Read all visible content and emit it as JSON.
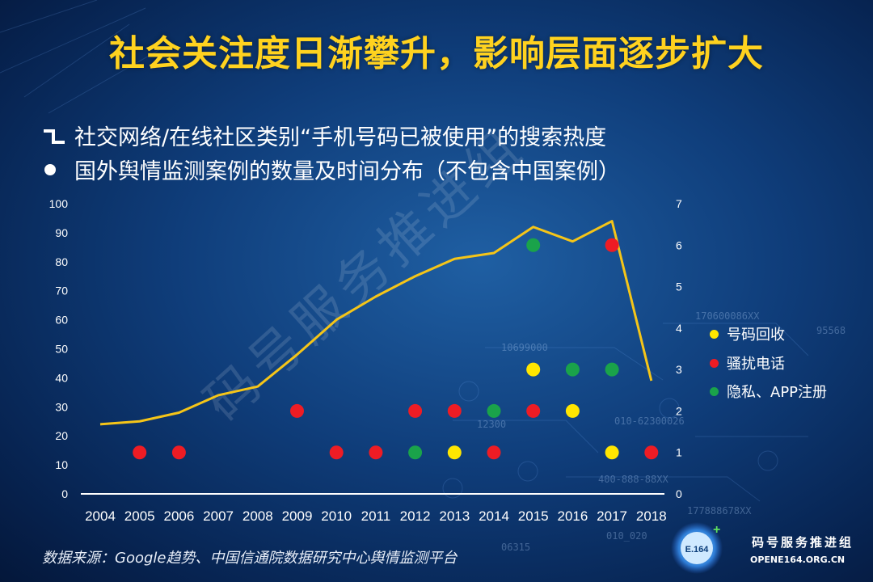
{
  "title": "社会关注度日渐攀升，影响层面逐步扩大",
  "series_line_label": "社交网络/在线社区类别“手机号码已被使用”的搜索热度",
  "series_dot_label": "国外舆情监测案例的数量及时间分布（不包含中国案例）",
  "source": "数据来源：Google趋势、中国信通院数据研究中心舆情监测平台",
  "logo": {
    "name": "码号服务推进组",
    "url": "OPENE164.ORG.CN",
    "badge": "E.164"
  },
  "watermark": "码号服务推进组",
  "colors": {
    "line": "#f5c518",
    "yellow": "#ffe600",
    "red": "#ee1c24",
    "green": "#1aa34a",
    "title": "#ffd21f"
  },
  "chart_data": {
    "type": "line",
    "x": [
      "2004",
      "2005",
      "2006",
      "2007",
      "2008",
      "2009",
      "2010",
      "2011",
      "2012",
      "2013",
      "2014",
      "2015",
      "2016",
      "2017",
      "2018"
    ],
    "y_left_range": [
      0,
      100
    ],
    "y_left_ticks": [
      "0",
      "10",
      "20",
      "30",
      "40",
      "50",
      "60",
      "70",
      "80",
      "90",
      "100"
    ],
    "y_right_range": [
      0,
      7
    ],
    "y_right_ticks": [
      "0",
      "1",
      "2",
      "3",
      "4",
      "5",
      "6",
      "7"
    ],
    "line_values": [
      24,
      25,
      28,
      34,
      37,
      48,
      60,
      68,
      75,
      81,
      83,
      92,
      87,
      94,
      39
    ],
    "legend": [
      {
        "name": "号码回收",
        "color": "yellow"
      },
      {
        "name": "骚扰电话",
        "color": "red"
      },
      {
        "name": "隐私、APP注册",
        "color": "green"
      }
    ],
    "points": [
      {
        "x": "2005",
        "y": 1,
        "cat": "red"
      },
      {
        "x": "2006",
        "y": 1,
        "cat": "red"
      },
      {
        "x": "2009",
        "y": 2,
        "cat": "red"
      },
      {
        "x": "2010",
        "y": 1,
        "cat": "red"
      },
      {
        "x": "2011",
        "y": 1,
        "cat": "red"
      },
      {
        "x": "2012",
        "y": 1,
        "cat": "green"
      },
      {
        "x": "2012",
        "y": 2,
        "cat": "red"
      },
      {
        "x": "2013",
        "y": 1,
        "cat": "yellow"
      },
      {
        "x": "2013",
        "y": 2,
        "cat": "red"
      },
      {
        "x": "2014",
        "y": 1,
        "cat": "red"
      },
      {
        "x": "2014",
        "y": 2,
        "cat": "green"
      },
      {
        "x": "2015",
        "y": 2,
        "cat": "red"
      },
      {
        "x": "2015",
        "y": 3,
        "cat": "yellow"
      },
      {
        "x": "2015",
        "y": 6,
        "cat": "green"
      },
      {
        "x": "2016",
        "y": 2,
        "cat": "yellow"
      },
      {
        "x": "2016",
        "y": 3,
        "cat": "green"
      },
      {
        "x": "2017",
        "y": 1,
        "cat": "yellow"
      },
      {
        "x": "2017",
        "y": 3,
        "cat": "green"
      },
      {
        "x": "2017",
        "y": 6,
        "cat": "red"
      },
      {
        "x": "2018",
        "y": 1,
        "cat": "red"
      }
    ]
  }
}
